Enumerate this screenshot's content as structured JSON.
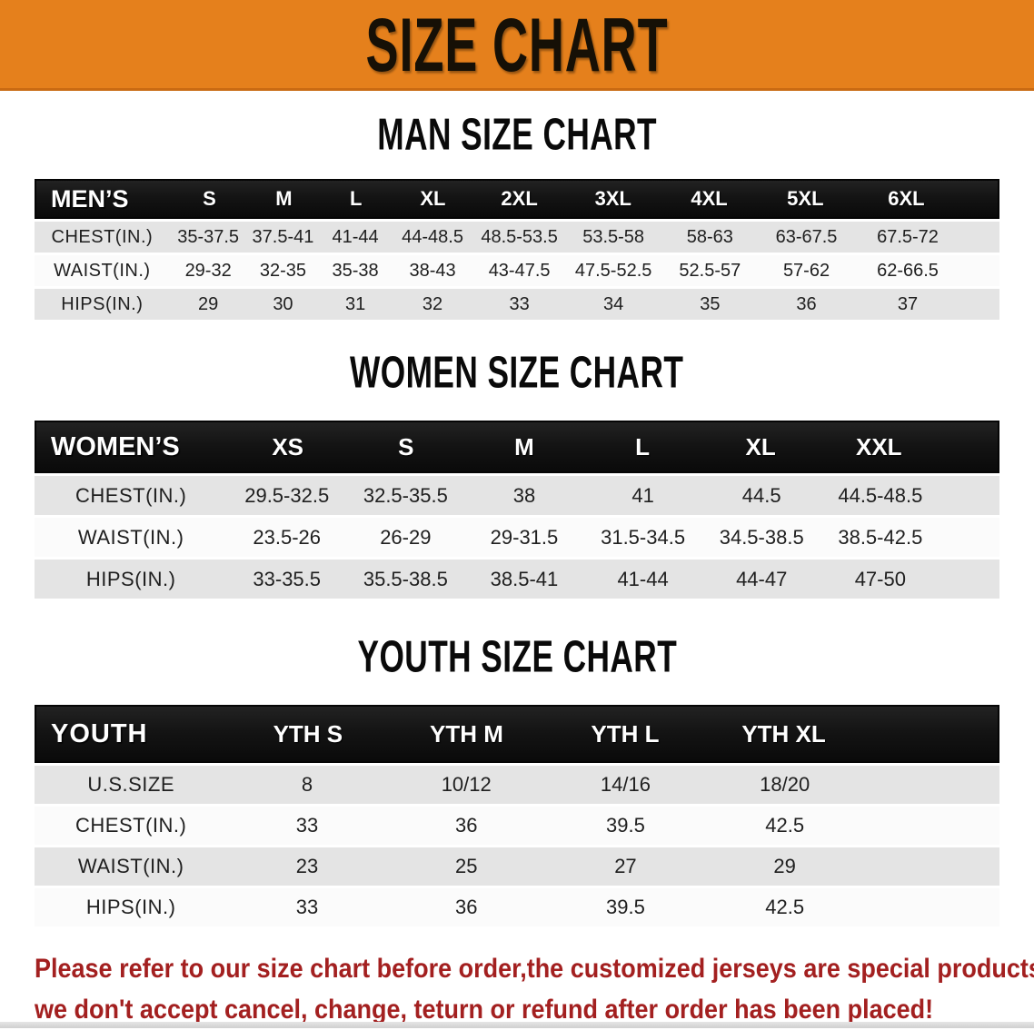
{
  "banner": {
    "title": "SIZE CHART"
  },
  "sections": [
    {
      "title": "MAN SIZE CHART",
      "header_label": "MEN’S",
      "columns": [
        "S",
        "M",
        "L",
        "XL",
        "2XL",
        "3XL",
        "4XL",
        "5XL",
        "6XL"
      ],
      "rows": [
        {
          "label": "CHEST(IN.)",
          "values": [
            "35-37.5",
            "37.5-41",
            "41-44",
            "44-48.5",
            "48.5-53.5",
            "53.5-58",
            "58-63",
            "63-67.5",
            "67.5-72"
          ]
        },
        {
          "label": "WAIST(IN.)",
          "values": [
            "29-32",
            "32-35",
            "35-38",
            "38-43",
            "43-47.5",
            "47.5-52.5",
            "52.5-57",
            "57-62",
            "62-66.5"
          ]
        },
        {
          "label": "HIPS(IN.)",
          "values": [
            "29",
            "30",
            "31",
            "32",
            "33",
            "34",
            "35",
            "36",
            "37"
          ]
        }
      ]
    },
    {
      "title": "WOMEN SIZE CHART",
      "header_label": "WOMEN’S",
      "columns": [
        "XS",
        "S",
        "M",
        "L",
        "XL",
        "XXL"
      ],
      "rows": [
        {
          "label": "CHEST(IN.)",
          "values": [
            "29.5-32.5",
            "32.5-35.5",
            "38",
            "41",
            "44.5",
            "44.5-48.5"
          ]
        },
        {
          "label": "WAIST(IN.)",
          "values": [
            "23.5-26",
            "26-29",
            "29-31.5",
            "31.5-34.5",
            "34.5-38.5",
            "38.5-42.5"
          ]
        },
        {
          "label": "HIPS(IN.)",
          "values": [
            "33-35.5",
            "35.5-38.5",
            "38.5-41",
            "41-44",
            "44-47",
            "47-50"
          ]
        }
      ]
    },
    {
      "title": "YOUTH SIZE CHART",
      "header_label": "YOUTH",
      "columns": [
        "YTH S",
        "YTH M",
        "YTH L",
        "YTH XL"
      ],
      "rows": [
        {
          "label": "U.S.SIZE",
          "values": [
            "8",
            "10/12",
            "14/16",
            "18/20"
          ]
        },
        {
          "label": "CHEST(IN.)",
          "values": [
            "33",
            "36",
            "39.5",
            "42.5"
          ]
        },
        {
          "label": "WAIST(IN.)",
          "values": [
            "23",
            "25",
            "27",
            "29"
          ]
        },
        {
          "label": "HIPS(IN.)",
          "values": [
            "33",
            "36",
            "39.5",
            "42.5"
          ]
        }
      ]
    }
  ],
  "disclaimer": {
    "line1": "Please refer to our size chart before order,the customized jerseys are special products,",
    "line2": "we don't accept cancel, change, teturn or refund after order has been placed!"
  },
  "colors": {
    "banner_bg": "#E5801C",
    "banner_edge": "#C96A12",
    "banner_text": "#161006",
    "table_header_bg": "#141414",
    "table_header_text": "#FFFFFF",
    "row_gray": "#E4E4E4",
    "row_white": "#FBFBFB",
    "body_text": "#1F1F1F",
    "disclaimer_red": "#A32020",
    "bottom_strip": "#CFCFCF"
  }
}
